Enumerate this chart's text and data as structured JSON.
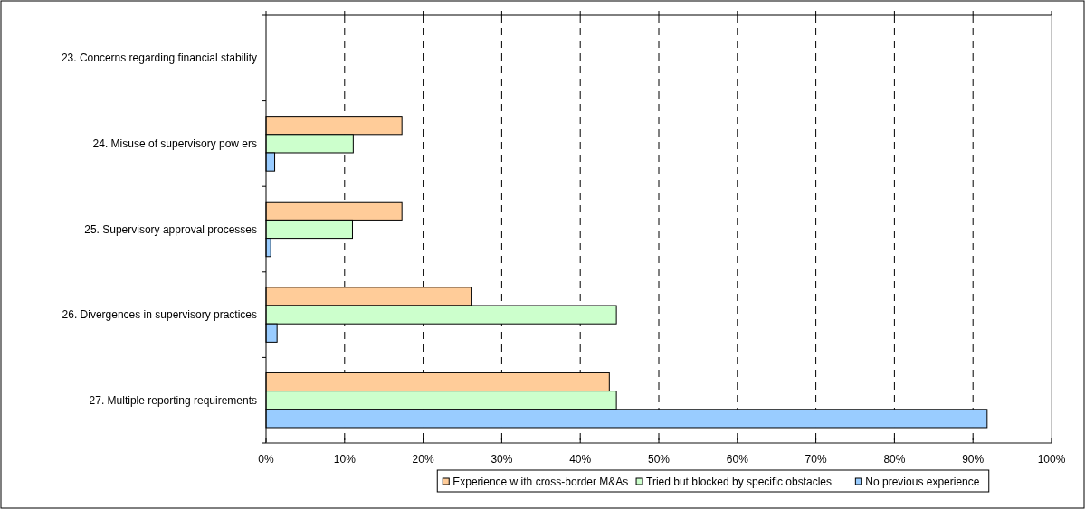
{
  "chart_data": {
    "type": "bar",
    "orientation": "horizontal",
    "categories": [
      "23. Concerns regarding financial stability",
      "24. Misuse of supervisory pow ers",
      "25. Supervisory approval processes",
      "26. Divergences in supervisory practices",
      "27. Multiple reporting requirements"
    ],
    "series": [
      {
        "name": "Experience w ith cross-border M&As",
        "color": "#ffcc99",
        "values": [
          0,
          17.3,
          17.3,
          26.2,
          43.7
        ]
      },
      {
        "name": "Tried but blocked by specific obstacles",
        "color": "#ccffcc",
        "values": [
          0,
          11.1,
          11.0,
          44.6,
          44.6
        ]
      },
      {
        "name": "No previous experience",
        "color": "#99ccff",
        "values": [
          0,
          1.1,
          0.6,
          1.4,
          91.8
        ]
      }
    ],
    "xlim": [
      0,
      100
    ],
    "xticks": [
      {
        "value": 0,
        "label": "0%"
      },
      {
        "value": 10,
        "label": "10%"
      },
      {
        "value": 20,
        "label": "20%"
      },
      {
        "value": 30,
        "label": "30%"
      },
      {
        "value": 40,
        "label": "40%"
      },
      {
        "value": 50,
        "label": "50%"
      },
      {
        "value": 60,
        "label": "60%"
      },
      {
        "value": 70,
        "label": "70%"
      },
      {
        "value": 80,
        "label": "80%"
      },
      {
        "value": 90,
        "label": "90%"
      },
      {
        "value": 100,
        "label": "100%"
      }
    ],
    "grid": "x",
    "legend": "bottom"
  }
}
